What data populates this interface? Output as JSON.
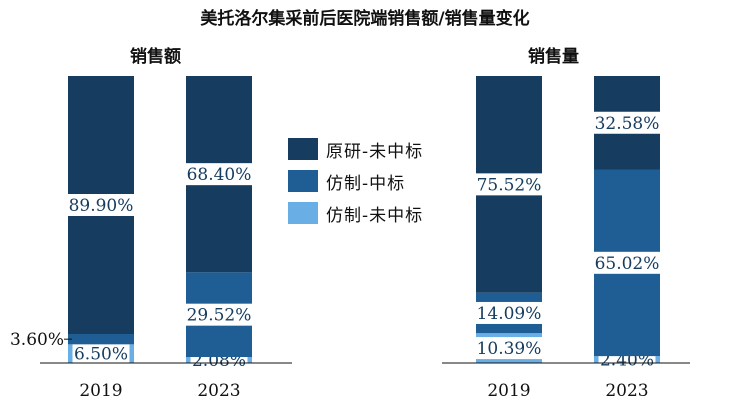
{
  "title": "美托洛尔集采前后医院端销售额/销售量变化",
  "colors": {
    "original_unbid": "#163d60",
    "generic_bid": "#1e5e94",
    "generic_unbid": "#6aaee6"
  },
  "legend": [
    {
      "label": "原研-未中标",
      "color": "#163d60"
    },
    {
      "label": "仿制-中标",
      "color": "#1e5e94"
    },
    {
      "label": "仿制-未中标",
      "color": "#6aaee6"
    }
  ],
  "chart_data": [
    {
      "type": "bar",
      "stacked": true,
      "title": "销售额",
      "categories": [
        "2019",
        "2023"
      ],
      "ylim": [
        0,
        100
      ],
      "series": [
        {
          "name": "仿制-未中标",
          "values": [
            6.5,
            2.08
          ],
          "labels": [
            "6.50%",
            "2.08%"
          ]
        },
        {
          "name": "仿制-中标",
          "values": [
            3.6,
            29.52
          ],
          "labels": [
            "3.60%",
            "29.52%"
          ]
        },
        {
          "name": "原研-未中标",
          "values": [
            89.9,
            68.4
          ],
          "labels": [
            "89.90%",
            "68.40%"
          ]
        }
      ]
    },
    {
      "type": "bar",
      "stacked": true,
      "title": "销售量",
      "categories": [
        "2019",
        "2023"
      ],
      "ylim": [
        0,
        100
      ],
      "series": [
        {
          "name": "仿制-未中标",
          "values": [
            10.39,
            2.4
          ],
          "labels": [
            "10.39%",
            "2.40%"
          ]
        },
        {
          "name": "仿制-中标",
          "values": [
            14.09,
            65.02
          ],
          "labels": [
            "14.09%",
            "65.02%"
          ]
        },
        {
          "name": "原研-未中标",
          "values": [
            75.52,
            32.58
          ],
          "labels": [
            "75.52%",
            "32.58%"
          ]
        }
      ]
    }
  ]
}
